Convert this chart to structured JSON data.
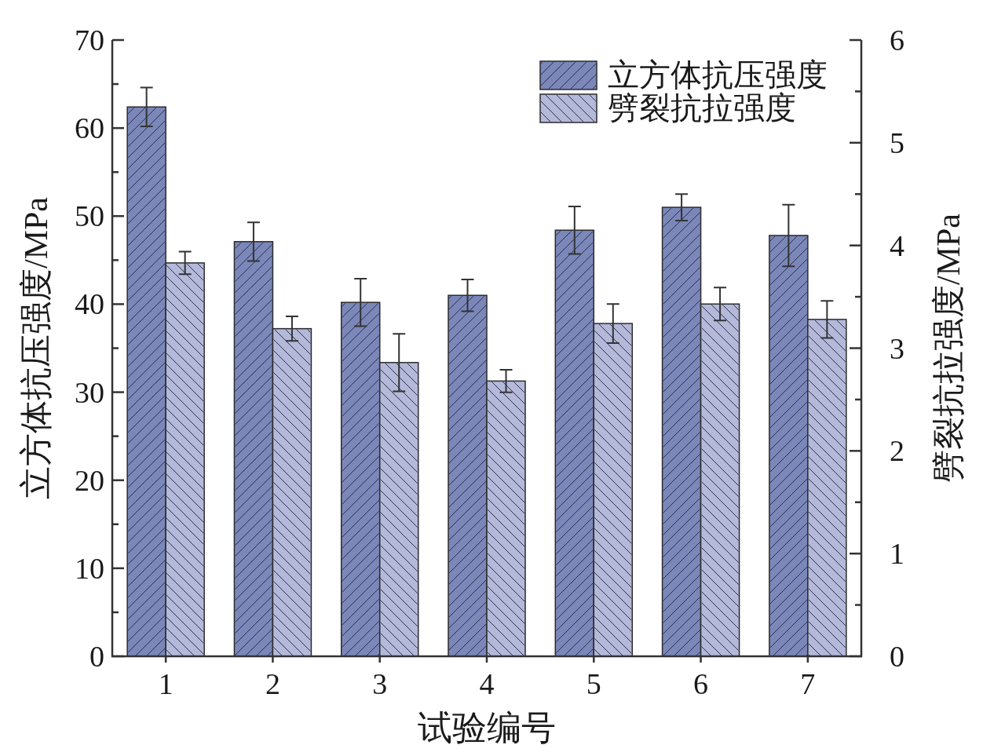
{
  "chart_data": {
    "type": "bar",
    "xlabel": "试验编号",
    "ylabel": "立方体抗压强度/MPa",
    "y2label": "劈裂抗拉强度/MPa",
    "categories": [
      "1",
      "2",
      "3",
      "4",
      "5",
      "6",
      "7"
    ],
    "series": [
      {
        "name": "立方体抗压强度",
        "color": "#7b87b9",
        "values": [
          62.4,
          47.1,
          40.2,
          41.0,
          48.4,
          51.0,
          47.8
        ],
        "errors": [
          2.2,
          2.2,
          2.7,
          1.8,
          2.7,
          1.5,
          3.5
        ]
      },
      {
        "name": "劈裂抗拉强度",
        "color": "#b4b9da",
        "axis": "y2",
        "values": [
          3.83,
          3.19,
          2.86,
          2.68,
          3.24,
          3.43,
          3.28
        ],
        "errors": [
          0.11,
          0.12,
          0.28,
          0.11,
          0.19,
          0.16,
          0.18
        ]
      }
    ],
    "ylim": [
      0,
      70
    ],
    "yticks": [
      0,
      {
        "value": 5,
        "label": null
      },
      10,
      {
        "value": 15,
        "label": null
      },
      20,
      {
        "value": 25,
        "label": null
      },
      30,
      {
        "value": 35,
        "label": null
      },
      40,
      {
        "value": 45,
        "label": null
      },
      50,
      {
        "value": 55,
        "label": null
      },
      60,
      {
        "value": 65,
        "label": null
      },
      70
    ],
    "y2lim": [
      0,
      6
    ],
    "y2ticks": [
      0,
      {
        "value": 0.5,
        "label": null
      },
      1,
      {
        "value": 1.5,
        "label": null
      },
      2,
      {
        "value": 2.5,
        "label": null
      },
      3,
      {
        "value": 3.5,
        "label": null
      },
      4,
      {
        "value": 4.5,
        "label": null
      },
      5,
      {
        "value": 5.5,
        "label": null
      },
      6
    ],
    "legend": "top right"
  }
}
